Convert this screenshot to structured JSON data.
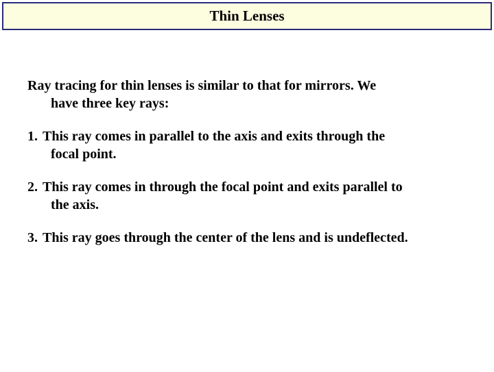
{
  "title": "Thin Lenses",
  "intro_line1": "Ray tracing for thin lenses is similar to that for mirrors. We",
  "intro_line2": "have three key rays:",
  "items": [
    {
      "num": "1.",
      "line1": "This ray comes in parallel to the axis and exits through the",
      "line2": "focal point."
    },
    {
      "num": "2.",
      "line1": "This ray comes in through the focal point and exits parallel to",
      "line2": "the axis."
    },
    {
      "num": "3.",
      "line1": "This ray goes through the center of the lens and is undeflected.",
      "line2": ""
    }
  ],
  "colors": {
    "title_bg": "#fdfde0",
    "title_border": "#2a2a7a",
    "text": "#000000",
    "page_bg": "#ffffff"
  },
  "typography": {
    "title_fontsize": 21,
    "body_fontsize": 20,
    "weight": "bold",
    "family": "Georgia, Times New Roman, serif"
  }
}
